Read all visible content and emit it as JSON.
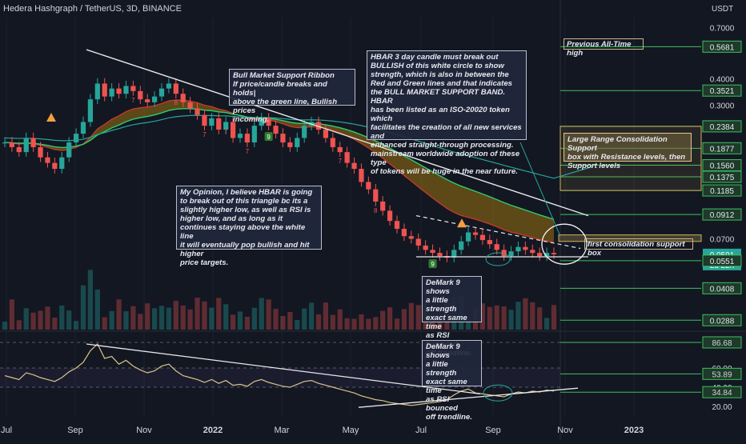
{
  "chart_data": {
    "type": "candlestick",
    "title": "Hedera Hashgraph / TetherUS, 3D, BINANCE",
    "y_unit": "USDT",
    "y_scale": "log",
    "x_ticks": [
      "Jul",
      "Sep",
      "Nov",
      "2022",
      "Mar",
      "May",
      "Jul",
      "Sep",
      "Nov",
      "2023"
    ],
    "price_axis_labels": [
      "0.7000",
      "0.5681",
      "0.4000",
      "0.3521",
      "0.3000",
      "0.2384",
      "0.1877",
      "0.1560",
      "0.1375",
      "0.1185",
      "0.0912",
      "0.0700",
      "0.0591",
      "2d 22h",
      "0.0551",
      "0.0408",
      "0.0288"
    ],
    "price_levels": {
      "previous_ath": 0.5681,
      "level_2": 0.3521,
      "consolidation_box": [
        0.1185,
        0.2384
      ],
      "box_inner": [
        0.1877,
        0.156,
        0.1375
      ],
      "lower_1": 0.0912,
      "first_support_box": [
        0.068,
        0.073
      ],
      "current": 0.0591,
      "lower_2": 0.0551,
      "lower_3": 0.0408,
      "lower_4": 0.0288
    },
    "price_series": {
      "x_range": [
        "Jul",
        "2023"
      ],
      "close": [
        0.2,
        0.19,
        0.18,
        0.21,
        0.19,
        0.17,
        0.16,
        0.15,
        0.17,
        0.2,
        0.22,
        0.25,
        0.32,
        0.38,
        0.33,
        0.36,
        0.34,
        0.37,
        0.35,
        0.32,
        0.31,
        0.33,
        0.36,
        0.38,
        0.34,
        0.31,
        0.29,
        0.27,
        0.24,
        0.26,
        0.23,
        0.25,
        0.21,
        0.22,
        0.2,
        0.24,
        0.26,
        0.24,
        0.22,
        0.2,
        0.19,
        0.21,
        0.24,
        0.25,
        0.23,
        0.21,
        0.19,
        0.18,
        0.16,
        0.15,
        0.13,
        0.12,
        0.105,
        0.095,
        0.085,
        0.078,
        0.072,
        0.07,
        0.065,
        0.062,
        0.06,
        0.058,
        0.057,
        0.062,
        0.068,
        0.075,
        0.073,
        0.069,
        0.066,
        0.062,
        0.058,
        0.061,
        0.064,
        0.062,
        0.06,
        0.058,
        0.06,
        0.0591
      ]
    },
    "ema_ribbon": {
      "name": "Bull Market Support Ribbon"
    },
    "rsi": {
      "levels": [
        86.68,
        60.0,
        53.89,
        40.0,
        34.84,
        20.0
      ],
      "axis_labels": [
        "86.68",
        "60.00",
        "53.89",
        "40.00",
        "34.84",
        "20.00"
      ],
      "values": [
        52,
        50,
        48,
        55,
        53,
        50,
        48,
        46,
        50,
        56,
        60,
        66,
        78,
        85,
        70,
        72,
        64,
        68,
        62,
        58,
        55,
        57,
        62,
        64,
        57,
        52,
        50,
        48,
        45,
        48,
        44,
        47,
        42,
        43,
        41,
        46,
        48,
        45,
        43,
        41,
        40,
        43,
        46,
        47,
        44,
        42,
        40,
        38,
        36,
        34,
        31,
        29,
        27,
        26,
        24,
        23,
        22,
        21,
        22,
        23,
        24,
        25,
        27,
        32,
        36,
        38,
        34,
        33,
        32,
        31,
        30,
        33,
        35,
        34,
        36,
        35,
        37,
        36
      ]
    },
    "annotations": {
      "bull_ribbon": "Bull Market Support Ribbon\nIf price/candle breaks and holds|\nabove the green line, Bullish prices\nincoming.",
      "hbar_breakout": "HBAR 3 day candle must break out\nBULLISH of this white circle to show\nstrength, which is also in between the\nRed and Green lines and that indicates\nthe BULL MARKET SUPPORT BAND. HBAR\nhas been listed as an ISO-20020 token which\nfacilitates the creation of all new services and\nenhanced straight-through processing.\nmainstream worldwide adoption of these type\nof tokens will be huge in the near future.",
      "opinion": "My Opinion, I believe HBAR is going\nto break out of this triangle bc its a\nslightly higher low, as well as RSI is\nhigher low, and as long as it\ncontinues staying above the white line\nit will eventually pop bullish and hit higher\nprice targets.",
      "demark_1": "DeMark 9 shows\na little strength\nexact same time\nas RSI bounced\noff trendline.",
      "demark_2": "DeMark 9 shows\na little strength\nexact same time\nas RSI bounced\noff trendline.",
      "previous_ath": "Previous All-Time high",
      "large_range": "Large Range Consolidation Support\nbox with Resistance levels, then\nSupport levels",
      "first_support": "first consolidation support box"
    },
    "demark_marks": [
      "7",
      "8",
      "7",
      "7",
      "7",
      "9",
      "7",
      "8",
      "9"
    ],
    "colors": {
      "up": "#26a69a",
      "down": "#ef5350",
      "ribbon_fill": "#b8860b",
      "ribbon_red": "#c0392b",
      "ribbon_green": "#2ecc71",
      "rsi": "#d9c48a",
      "level_box": "#3fbf5f",
      "consolidation": "#d2b35a"
    }
  }
}
